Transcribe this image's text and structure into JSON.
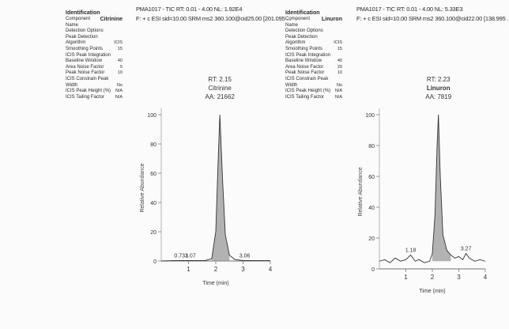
{
  "chart_data": [
    {
      "type": "line",
      "panel": "left",
      "header": {
        "line1": "PMA1017 - TIC RT: 0.01 - 4.00  NL: 1.92E4",
        "line2": "F: + c ESI sid=10.00  SRM ms2  360.100@cid25.00 [201.095 ..."
      },
      "params_title": "Identification",
      "params": [
        {
          "label": "Component Name",
          "value": "Citrinine"
        },
        {
          "label": "Detection Options",
          "value": ""
        },
        {
          "label": "Peak Detection",
          "value": ""
        },
        {
          "label": "Algorithm",
          "value": "ICIS"
        },
        {
          "label": "Smoothing Points",
          "value": "15"
        },
        {
          "label": "ICIS Peak Integration",
          "value": ""
        },
        {
          "label": "Baseline Window",
          "value": "40"
        },
        {
          "label": "Area Noise Factor",
          "value": "5"
        },
        {
          "label": "Peak Noise Factor",
          "value": "10"
        },
        {
          "label": "ICIS Constrain Peak",
          "value": ""
        },
        {
          "label": "Width",
          "value": "No"
        },
        {
          "label": "ICIS Peak Height (%)",
          "value": "N/A"
        },
        {
          "label": "ICIS Tailing Factor",
          "value": "N/A"
        }
      ],
      "peak_label": {
        "rt": "RT: 2.15",
        "name": "Citrinine",
        "area": "AA: 21662"
      },
      "annotations": [
        {
          "x": 0.73,
          "text": "0.733"
        },
        {
          "x": 1.07,
          "text": "1.07"
        },
        {
          "x": 3.06,
          "text": "3.06"
        }
      ],
      "ylabel": "Relative Abundance",
      "xlabel": "Time (min)",
      "x_ticks": [
        "1",
        "2",
        "3",
        "4"
      ],
      "y_ticks": [
        "100",
        "80",
        "60",
        "40",
        "20",
        "0"
      ],
      "xlim": [
        0,
        4
      ],
      "ylim": [
        0,
        100
      ],
      "series": [
        {
          "x": [
            0,
            0.5,
            1.0,
            1.6,
            1.85,
            2.0,
            2.08,
            2.15,
            2.25,
            2.35,
            2.5,
            2.7,
            3.0,
            3.5,
            4.0
          ],
          "y": [
            0,
            0.3,
            0.3,
            0.3,
            1.5,
            20,
            65,
            100,
            55,
            18,
            4,
            1,
            0.3,
            0.3,
            0.2
          ]
        }
      ]
    },
    {
      "type": "line",
      "panel": "right",
      "header": {
        "line1": "PMA1017 - TIC RT: 0.01 - 4.00  NL: 5.33E3",
        "line2": "F: + c ESI sid=10.00  SRM ms2  360.100@cid22.00 [138.995 ..."
      },
      "params_title": "Identification",
      "params": [
        {
          "label": "Component Name",
          "value": "Linuron"
        },
        {
          "label": "Detection Options",
          "value": ""
        },
        {
          "label": "Peak Detection",
          "value": ""
        },
        {
          "label": "Algorithm",
          "value": "ICIS"
        },
        {
          "label": "Smoothing Points",
          "value": "15"
        },
        {
          "label": "ICIS Peak Integration",
          "value": ""
        },
        {
          "label": "Baseline Window",
          "value": "40"
        },
        {
          "label": "Area Noise Factor",
          "value": "20"
        },
        {
          "label": "Peak Noise Factor",
          "value": "10"
        },
        {
          "label": "ICIS Constrain Peak",
          "value": ""
        },
        {
          "label": "Width",
          "value": "No"
        },
        {
          "label": "ICIS Peak Height (%)",
          "value": "N/A"
        },
        {
          "label": "ICIS Tailing Factor",
          "value": "N/A"
        }
      ],
      "peak_label": {
        "rt": "RT: 2.23",
        "name": "Linuron",
        "area": "AA: 7819"
      },
      "annotations": [
        {
          "x": 1.18,
          "text": "1.18"
        },
        {
          "x": 3.27,
          "text": "3.27"
        }
      ],
      "ylabel": "Relative Abundance",
      "xlabel": "Time (min)",
      "x_ticks": [
        "1",
        "2",
        "3",
        "4"
      ],
      "y_ticks": [
        "100",
        "80",
        "60",
        "40",
        "20",
        "0"
      ],
      "xlim": [
        0,
        4
      ],
      "ylim": [
        0,
        100
      ],
      "series": [
        {
          "x": [
            0,
            0.2,
            0.4,
            0.6,
            0.8,
            1.0,
            1.18,
            1.35,
            1.5,
            1.7,
            1.9,
            2.0,
            2.1,
            2.18,
            2.23,
            2.3,
            2.4,
            2.55,
            2.7,
            2.85,
            3.0,
            3.15,
            3.27,
            3.4,
            3.6,
            3.8,
            4.0
          ],
          "y": [
            5,
            6,
            4,
            7,
            5,
            6,
            9,
            5,
            6,
            4,
            5,
            10,
            35,
            80,
            100,
            60,
            22,
            12,
            9,
            7,
            8,
            6,
            10,
            7,
            5,
            6,
            5
          ]
        }
      ]
    }
  ]
}
